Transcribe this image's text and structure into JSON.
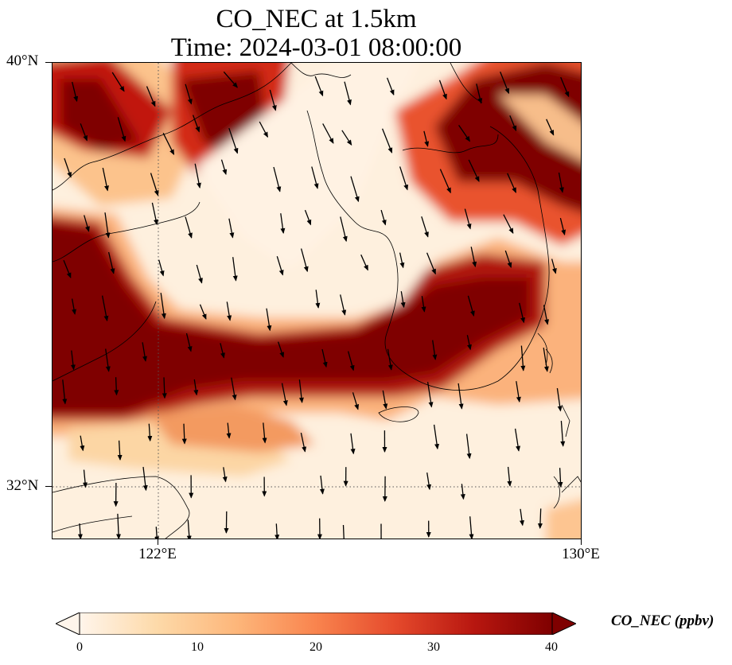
{
  "title": {
    "line1": "CO_NEC at 1.5km",
    "line2": "Time: 2024-03-01 08:00:00"
  },
  "map": {
    "lat_range": [
      31.2,
      40
    ],
    "lon_range": [
      120,
      130
    ],
    "lat_ticks": [
      {
        "value": 40,
        "label": "40°N"
      },
      {
        "value": 32,
        "label": "32°N"
      }
    ],
    "lon_ticks": [
      {
        "value": 122,
        "label": "122°E"
      },
      {
        "value": 130,
        "label": "130°E"
      }
    ],
    "gridlines": "dotted",
    "field": "CO_NEC",
    "vectors": "wind arrows"
  },
  "colorbar": {
    "label": "CO_NEC (ppbv)",
    "ticks": [
      "0",
      "10",
      "20",
      "30",
      "40"
    ],
    "min": 0,
    "max": 40,
    "extend": "both",
    "colormap": [
      "#fff5eb",
      "#fdd9a8",
      "#fdb67a",
      "#f9844e",
      "#e54a2c",
      "#b81710",
      "#7f0000"
    ]
  }
}
